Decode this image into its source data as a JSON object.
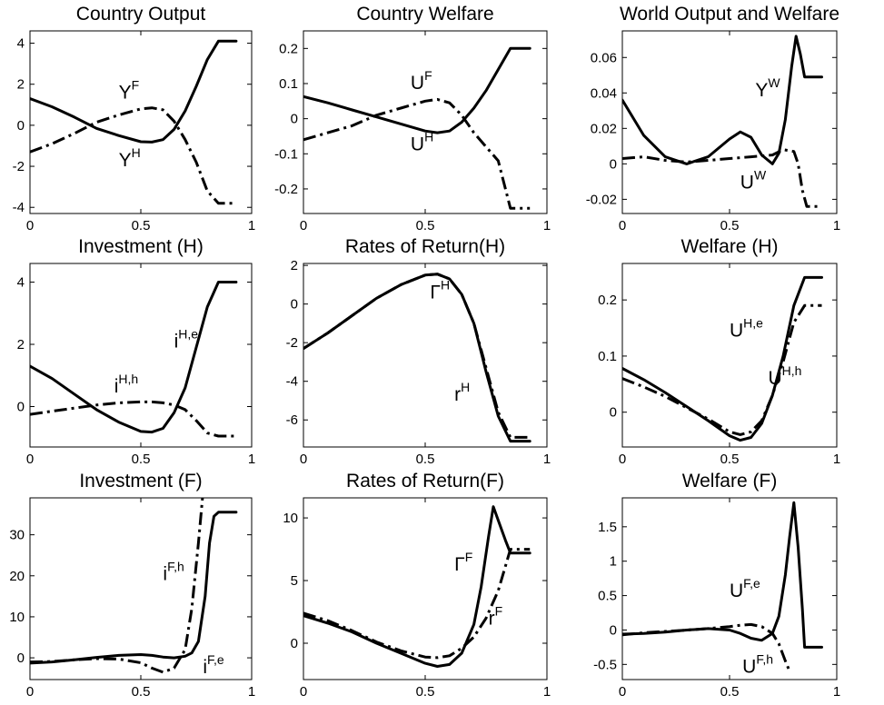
{
  "chart_data": [
    {
      "type": "line",
      "title": "Country Output",
      "xlim": [
        0,
        1
      ],
      "ylim": [
        -4.3,
        4.6
      ],
      "xticks": [
        0,
        0.5,
        1
      ],
      "xtick_labels": [
        "0",
        "0.5",
        "1"
      ],
      "yticks": [
        -4,
        -2,
        0,
        2,
        4
      ],
      "ytick_labels": [
        "-4",
        "-2",
        "0",
        "2",
        "4"
      ],
      "series": [
        {
          "style": "solid",
          "x": [
            0,
            0.1,
            0.2,
            0.3,
            0.4,
            0.5,
            0.55,
            0.6,
            0.65,
            0.7,
            0.75,
            0.8,
            0.85,
            0.88,
            0.93
          ],
          "y": [
            1.3,
            0.9,
            0.4,
            -0.15,
            -0.5,
            -0.8,
            -0.82,
            -0.7,
            -0.2,
            0.7,
            1.9,
            3.2,
            4.1,
            4.1,
            4.1
          ]
        },
        {
          "style": "dashdot",
          "x": [
            0,
            0.1,
            0.2,
            0.3,
            0.4,
            0.5,
            0.55,
            0.6,
            0.65,
            0.7,
            0.75,
            0.8,
            0.85,
            0.88,
            0.93
          ],
          "y": [
            -1.3,
            -0.9,
            -0.4,
            0.15,
            0.5,
            0.8,
            0.85,
            0.75,
            0.2,
            -0.7,
            -1.8,
            -3.2,
            -3.8,
            -3.8,
            -3.8
          ]
        }
      ],
      "labels": [
        {
          "base": "Y",
          "sup": "F",
          "x": 0.4,
          "y": 1.3
        },
        {
          "base": "Y",
          "sup": "H",
          "x": 0.4,
          "y": -2.0
        }
      ]
    },
    {
      "type": "line",
      "title": "Country Welfare",
      "xlim": [
        0,
        1
      ],
      "ylim": [
        -0.27,
        0.25
      ],
      "xticks": [
        0,
        0.5,
        1
      ],
      "xtick_labels": [
        "0",
        "0.5",
        "1"
      ],
      "yticks": [
        -0.2,
        -0.1,
        0,
        0.1,
        0.2
      ],
      "ytick_labels": [
        "-0.2",
        "-0.1",
        "0",
        "0.1",
        "0.2"
      ],
      "series": [
        {
          "style": "solid",
          "x": [
            0,
            0.1,
            0.2,
            0.3,
            0.4,
            0.5,
            0.55,
            0.6,
            0.65,
            0.7,
            0.75,
            0.8,
            0.85,
            0.88,
            0.93
          ],
          "y": [
            0.063,
            0.045,
            0.025,
            0.005,
            -0.015,
            -0.035,
            -0.04,
            -0.035,
            -0.01,
            0.03,
            0.08,
            0.14,
            0.2,
            0.2,
            0.2
          ]
        },
        {
          "style": "dashdot",
          "x": [
            0,
            0.1,
            0.2,
            0.3,
            0.4,
            0.5,
            0.55,
            0.6,
            0.65,
            0.7,
            0.75,
            0.8,
            0.85,
            0.88,
            0.93
          ],
          "y": [
            -0.06,
            -0.04,
            -0.02,
            0.01,
            0.03,
            0.05,
            0.055,
            0.045,
            0.01,
            -0.04,
            -0.08,
            -0.12,
            -0.255,
            -0.255,
            -0.255
          ]
        }
      ],
      "labels": [
        {
          "base": "U",
          "sup": "F",
          "x": 0.44,
          "y": 0.085
        },
        {
          "base": "U",
          "sup": "H",
          "x": 0.44,
          "y": -0.09
        }
      ]
    },
    {
      "type": "line",
      "title": "World Output and Welfare",
      "xlim": [
        0,
        1
      ],
      "ylim": [
        -0.028,
        0.075
      ],
      "xticks": [
        0,
        0.5,
        1
      ],
      "xtick_labels": [
        "0",
        "0.5",
        "1"
      ],
      "yticks": [
        -0.02,
        0,
        0.02,
        0.04,
        0.06
      ],
      "ytick_labels": [
        "-0.02",
        "0",
        "0.02",
        "0.04",
        "0.06"
      ],
      "series": [
        {
          "style": "solid",
          "x": [
            0,
            0.05,
            0.1,
            0.2,
            0.3,
            0.4,
            0.5,
            0.55,
            0.6,
            0.65,
            0.7,
            0.73,
            0.76,
            0.79,
            0.81,
            0.83,
            0.85,
            0.88,
            0.93
          ],
          "y": [
            0.036,
            0.026,
            0.016,
            0.004,
            0.0,
            0.004,
            0.014,
            0.018,
            0.015,
            0.005,
            0.0,
            0.006,
            0.025,
            0.055,
            0.072,
            0.062,
            0.049,
            0.049,
            0.049
          ]
        },
        {
          "style": "dashdot",
          "x": [
            0,
            0.1,
            0.2,
            0.3,
            0.4,
            0.5,
            0.6,
            0.7,
            0.75,
            0.8,
            0.82,
            0.84,
            0.86,
            0.88,
            0.93
          ],
          "y": [
            0.003,
            0.004,
            0.002,
            0.001,
            0.002,
            0.003,
            0.004,
            0.005,
            0.008,
            0.007,
            0.0,
            -0.015,
            -0.024,
            -0.024,
            -0.024
          ]
        }
      ],
      "labels": [
        {
          "base": "Y",
          "sup": "W",
          "x": 0.62,
          "y": 0.038
        },
        {
          "base": "U",
          "sup": "W",
          "x": 0.55,
          "y": -0.014
        }
      ]
    },
    {
      "type": "line",
      "title": "Investment  (H)",
      "xlim": [
        0,
        1
      ],
      "ylim": [
        -1.3,
        4.6
      ],
      "xticks": [
        0,
        0.5,
        1
      ],
      "xtick_labels": [
        "0",
        "0.5",
        "1"
      ],
      "yticks": [
        0,
        2,
        4
      ],
      "ytick_labels": [
        "0",
        "2",
        "4"
      ],
      "series": [
        {
          "style": "solid",
          "x": [
            0,
            0.1,
            0.2,
            0.3,
            0.4,
            0.5,
            0.55,
            0.6,
            0.65,
            0.7,
            0.75,
            0.8,
            0.85,
            0.88,
            0.93
          ],
          "y": [
            1.3,
            0.9,
            0.4,
            -0.1,
            -0.5,
            -0.8,
            -0.82,
            -0.7,
            -0.2,
            0.6,
            1.9,
            3.2,
            4.0,
            4.0,
            4.0
          ]
        },
        {
          "style": "dashdot",
          "x": [
            0,
            0.1,
            0.2,
            0.3,
            0.4,
            0.5,
            0.55,
            0.6,
            0.65,
            0.7,
            0.75,
            0.8,
            0.85,
            0.88,
            0.93
          ],
          "y": [
            -0.25,
            -0.15,
            -0.05,
            0.05,
            0.12,
            0.15,
            0.15,
            0.12,
            0.05,
            -0.1,
            -0.45,
            -0.85,
            -0.95,
            -0.95,
            -0.95
          ]
        }
      ],
      "labels": [
        {
          "base": "i",
          "sup": "H,e",
          "x": 0.65,
          "y": 1.9
        },
        {
          "base": "i",
          "sup": "H,h",
          "x": 0.38,
          "y": 0.45
        }
      ]
    },
    {
      "type": "line",
      "title": "Rates of Return(H)",
      "xlim": [
        0,
        1
      ],
      "ylim": [
        -7.4,
        2.1
      ],
      "xticks": [
        0,
        0.5,
        1
      ],
      "xtick_labels": [
        "0",
        "0.5",
        "1"
      ],
      "yticks": [
        -6,
        -4,
        -2,
        0,
        2
      ],
      "ytick_labels": [
        "-6",
        "-4",
        "-2",
        "0",
        "2"
      ],
      "series": [
        {
          "style": "solid",
          "x": [
            0,
            0.1,
            0.2,
            0.3,
            0.4,
            0.5,
            0.55,
            0.6,
            0.65,
            0.7,
            0.75,
            0.8,
            0.85,
            0.88,
            0.93
          ],
          "y": [
            -2.3,
            -1.5,
            -0.6,
            0.3,
            1.0,
            1.5,
            1.55,
            1.3,
            0.5,
            -1.0,
            -3.5,
            -5.8,
            -7.1,
            -7.1,
            -7.1
          ]
        },
        {
          "style": "dashdot",
          "x": [
            0,
            0.1,
            0.2,
            0.3,
            0.4,
            0.5,
            0.55,
            0.6,
            0.65,
            0.7,
            0.75,
            0.8,
            0.85,
            0.88,
            0.93
          ],
          "y": [
            -2.3,
            -1.5,
            -0.6,
            0.3,
            1.0,
            1.5,
            1.55,
            1.3,
            0.5,
            -1.0,
            -3.3,
            -5.6,
            -6.9,
            -6.9,
            -6.9
          ]
        }
      ],
      "labels": [
        {
          "base": "Γ",
          "sup": "H",
          "x": 0.52,
          "y": 0.3
        },
        {
          "base": "r",
          "sup": "H",
          "x": 0.62,
          "y": -5.0
        }
      ]
    },
    {
      "type": "line",
      "title": "Welfare (H)",
      "xlim": [
        0,
        1
      ],
      "ylim": [
        -0.062,
        0.265
      ],
      "xticks": [
        0,
        0.5,
        1
      ],
      "xtick_labels": [
        "0",
        "0.5",
        "1"
      ],
      "yticks": [
        0,
        0.1,
        0.2
      ],
      "ytick_labels": [
        "0",
        "0.1",
        "0.2"
      ],
      "series": [
        {
          "style": "solid",
          "x": [
            0,
            0.1,
            0.2,
            0.3,
            0.4,
            0.5,
            0.55,
            0.6,
            0.65,
            0.7,
            0.75,
            0.8,
            0.85,
            0.88,
            0.93
          ],
          "y": [
            0.078,
            0.058,
            0.035,
            0.01,
            -0.015,
            -0.042,
            -0.05,
            -0.045,
            -0.02,
            0.03,
            0.1,
            0.19,
            0.24,
            0.24,
            0.24
          ]
        },
        {
          "style": "dashdot",
          "x": [
            0,
            0.1,
            0.2,
            0.3,
            0.4,
            0.5,
            0.55,
            0.6,
            0.65,
            0.7,
            0.75,
            0.8,
            0.85,
            0.88,
            0.93
          ],
          "y": [
            0.06,
            0.045,
            0.028,
            0.008,
            -0.012,
            -0.035,
            -0.04,
            -0.035,
            -0.015,
            0.03,
            0.09,
            0.16,
            0.19,
            0.19,
            0.19
          ]
        }
      ],
      "labels": [
        {
          "base": "U",
          "sup": "H,e",
          "x": 0.5,
          "y": 0.135
        },
        {
          "base": "U",
          "sup": "H,h",
          "x": 0.68,
          "y": 0.05
        }
      ]
    },
    {
      "type": "line",
      "title": "Investment  (F)",
      "xlim": [
        0,
        1
      ],
      "ylim": [
        -5.3,
        39
      ],
      "xticks": [
        0,
        0.5,
        1
      ],
      "xtick_labels": [
        "0",
        "0.5",
        "1"
      ],
      "yticks": [
        0,
        10,
        20,
        30
      ],
      "ytick_labels": [
        "0",
        "10",
        "20",
        "30"
      ],
      "series": [
        {
          "style": "solid",
          "x": [
            0,
            0.1,
            0.2,
            0.3,
            0.4,
            0.5,
            0.55,
            0.6,
            0.65,
            0.7,
            0.73,
            0.76,
            0.79,
            0.81,
            0.83,
            0.85,
            0.88,
            0.93
          ],
          "y": [
            -1.3,
            -1.0,
            -0.5,
            0.1,
            0.6,
            0.8,
            0.6,
            0.2,
            0.0,
            0.4,
            1.2,
            4.0,
            15.0,
            28.0,
            34.5,
            35.5,
            35.5,
            35.5
          ]
        },
        {
          "style": "dashdot",
          "x": [
            0,
            0.1,
            0.2,
            0.3,
            0.4,
            0.5,
            0.55,
            0.6,
            0.65,
            0.7,
            0.73,
            0.76,
            0.78,
            0.8
          ],
          "y": [
            -1.0,
            -0.9,
            -0.5,
            -0.2,
            -0.3,
            -1.2,
            -2.5,
            -3.5,
            -2.5,
            2.0,
            12.0,
            28.0,
            40.0,
            50.0
          ]
        }
      ],
      "labels": [
        {
          "base": "i",
          "sup": "F,h",
          "x": 0.6,
          "y": 19.0
        },
        {
          "base": "i",
          "sup": "F,e",
          "x": 0.78,
          "y": -3.8
        }
      ]
    },
    {
      "type": "line",
      "title": "Rates of Return(F)",
      "xlim": [
        0,
        1
      ],
      "ylim": [
        -2.9,
        11.6
      ],
      "xticks": [
        0,
        0.5,
        1
      ],
      "xtick_labels": [
        "0",
        "0.5",
        "1"
      ],
      "yticks": [
        0,
        5,
        10
      ],
      "ytick_labels": [
        "0",
        "5",
        "10"
      ],
      "series": [
        {
          "style": "solid",
          "x": [
            0,
            0.1,
            0.2,
            0.3,
            0.4,
            0.5,
            0.55,
            0.6,
            0.65,
            0.7,
            0.73,
            0.76,
            0.78,
            0.8,
            0.83,
            0.85,
            0.88,
            0.93
          ],
          "y": [
            2.2,
            1.6,
            0.9,
            0.0,
            -0.8,
            -1.6,
            -1.85,
            -1.7,
            -0.8,
            1.5,
            4.5,
            8.5,
            10.9,
            9.8,
            8.2,
            7.2,
            7.2,
            7.2
          ]
        },
        {
          "style": "dashdot",
          "x": [
            0,
            0.1,
            0.2,
            0.3,
            0.4,
            0.5,
            0.55,
            0.6,
            0.65,
            0.7,
            0.75,
            0.8,
            0.85,
            0.88,
            0.93
          ],
          "y": [
            2.4,
            1.8,
            1.0,
            0.1,
            -0.6,
            -1.1,
            -1.15,
            -1.0,
            -0.4,
            0.5,
            2.0,
            4.2,
            7.5,
            7.5,
            7.5
          ]
        }
      ],
      "labels": [
        {
          "base": "Γ",
          "sup": "F",
          "x": 0.62,
          "y": 5.8
        },
        {
          "base": "r",
          "sup": "F",
          "x": 0.76,
          "y": 1.5
        }
      ]
    },
    {
      "type": "line",
      "title": "Welfare (F)",
      "xlim": [
        0,
        1
      ],
      "ylim": [
        -0.72,
        1.92
      ],
      "xticks": [
        0,
        0.5,
        1
      ],
      "xtick_labels": [
        "0",
        "0.5",
        "1"
      ],
      "yticks": [
        -0.5,
        0,
        0.5,
        1,
        1.5
      ],
      "ytick_labels": [
        "-0.5",
        "0",
        "0.5",
        "1",
        "1.5"
      ],
      "series": [
        {
          "style": "solid",
          "x": [
            0,
            0.1,
            0.2,
            0.3,
            0.4,
            0.5,
            0.55,
            0.6,
            0.65,
            0.7,
            0.73,
            0.76,
            0.78,
            0.8,
            0.82,
            0.84,
            0.85,
            0.88,
            0.93
          ],
          "y": [
            -0.06,
            -0.05,
            -0.03,
            0.0,
            0.02,
            0.0,
            -0.05,
            -0.12,
            -0.15,
            -0.05,
            0.2,
            0.8,
            1.35,
            1.85,
            1.2,
            0.3,
            -0.25,
            -0.25,
            -0.25
          ]
        },
        {
          "style": "dashdot",
          "x": [
            0,
            0.1,
            0.2,
            0.3,
            0.4,
            0.5,
            0.55,
            0.6,
            0.65,
            0.7,
            0.73,
            0.76,
            0.78
          ],
          "y": [
            -0.07,
            -0.04,
            -0.02,
            0.0,
            0.02,
            0.05,
            0.07,
            0.08,
            0.05,
            -0.05,
            -0.2,
            -0.45,
            -0.6
          ]
        }
      ],
      "labels": [
        {
          "base": "U",
          "sup": "F,e",
          "x": 0.5,
          "y": 0.48
        },
        {
          "base": "U",
          "sup": "F,h",
          "x": 0.56,
          "y": -0.62
        }
      ]
    }
  ]
}
